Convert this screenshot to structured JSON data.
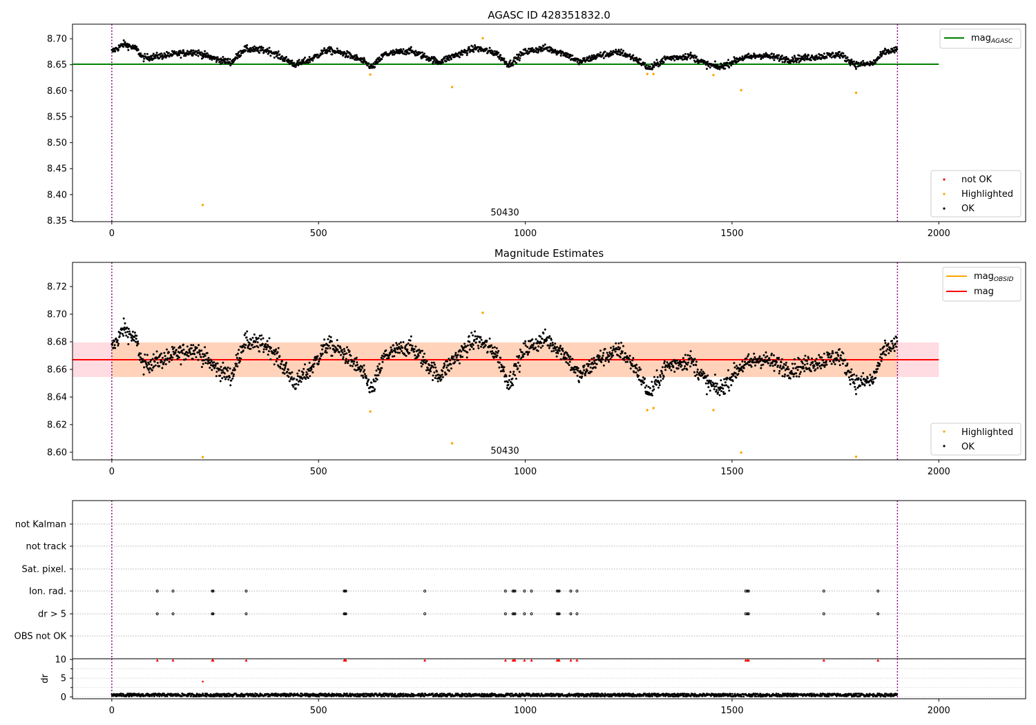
{
  "chart_data": [
    {
      "type": "scatter",
      "title": "AGASC ID 428351832.0",
      "xlim": [
        -95,
        2210
      ],
      "ylim": [
        8.348,
        8.728
      ],
      "x_ticks": [
        0,
        500,
        1000,
        1500,
        2000
      ],
      "y_ticks": [
        "8.35",
        "8.40",
        "8.45",
        "8.50",
        "8.55",
        "8.60",
        "8.65",
        "8.70"
      ],
      "obsid_label": "50430",
      "obsid_label_x": 950,
      "obs_boundaries_x": [
        0,
        1900
      ],
      "hlines": [
        {
          "name": "mag_AGASC",
          "y": 8.651,
          "x_range": [
            -95,
            2000
          ],
          "color": "#008000"
        }
      ],
      "series": [
        {
          "name": "OK",
          "color": "#000000",
          "n_points": 1900,
          "x_range": [
            0,
            1900
          ]
        },
        {
          "name": "Highlighted",
          "color": "#ffa500",
          "points": [
            [
              220,
              8.38
            ],
            [
              625,
              8.631
            ],
            [
              823,
              8.607
            ],
            [
              897,
              8.701
            ],
            [
              1295,
              8.632
            ],
            [
              1310,
              8.632
            ],
            [
              1455,
              8.63
            ],
            [
              1522,
              8.601
            ],
            [
              1800,
              8.596
            ]
          ]
        },
        {
          "name": "not OK",
          "color": "#ff0000",
          "points": []
        }
      ],
      "legend_upper": {
        "position": "top-right",
        "entries": [
          {
            "main": "mag",
            "sub": "AGASC",
            "color": "#008000"
          }
        ]
      },
      "legend_lower": {
        "position": "bottom-right",
        "entries": [
          {
            "label": "not OK",
            "color": "#ff0000"
          },
          {
            "label": "Highlighted",
            "color": "#ffa500"
          },
          {
            "label": "OK",
            "color": "#000000"
          }
        ]
      }
    },
    {
      "type": "scatter",
      "title": "Magnitude Estimates",
      "xlim": [
        -95,
        2210
      ],
      "ylim": [
        8.5945,
        8.7375
      ],
      "x_ticks": [
        0,
        500,
        1000,
        1500,
        2000
      ],
      "y_ticks": [
        "8.60",
        "8.62",
        "8.64",
        "8.66",
        "8.68",
        "8.70",
        "8.72"
      ],
      "obsid_label": "50430",
      "obsid_label_x": 950,
      "obs_boundaries_x": [
        0,
        1900
      ],
      "mag": 8.667,
      "mag_band": [
        8.6545,
        8.6795
      ],
      "mag_x_range": [
        -95,
        2000
      ],
      "mag_obsid": 8.667,
      "mag_obsid_band": [
        8.6545,
        8.6795
      ],
      "mag_obsid_x_range": [
        0,
        1900
      ],
      "series": [
        {
          "name": "OK",
          "color": "#000000",
          "n_points": 1900,
          "x_range": [
            0,
            1900
          ]
        },
        {
          "name": "Highlighted",
          "color": "#ffa500",
          "points": [
            [
              220,
              8.5965
            ],
            [
              625,
              8.6295
            ],
            [
              823,
              8.6065
            ],
            [
              897,
              8.701
            ],
            [
              1295,
              8.6305
            ],
            [
              1310,
              8.632
            ],
            [
              1455,
              8.6305
            ],
            [
              1522,
              8.5998
            ],
            [
              1800,
              8.5968
            ]
          ]
        }
      ],
      "legend_upper": {
        "position": "top-right",
        "entries": [
          {
            "main": "mag",
            "sub": "OBSID",
            "color": "#ffa500"
          },
          {
            "main": "mag",
            "sub": "",
            "color": "#ff0000"
          }
        ]
      },
      "legend_lower": {
        "position": "bottom-right",
        "entries": [
          {
            "label": "Highlighted",
            "color": "#ffa500"
          },
          {
            "label": "OK",
            "color": "#000000"
          }
        ]
      }
    },
    {
      "type": "scatter",
      "title": "",
      "xlim": [
        -95,
        2210
      ],
      "categories": [
        "OBS not OK",
        "dr > 5",
        "Ion. rad.",
        "Sat. pixel.",
        "not track",
        "not Kalman"
      ],
      "obs_boundaries_x": [
        0,
        1900
      ],
      "flag_x": [
        110,
        148,
        243,
        245,
        325,
        562,
        564,
        566,
        757,
        952,
        970,
        973,
        975,
        998,
        1015,
        1077,
        1080,
        1082,
        1110,
        1125,
        1533,
        1537,
        1540,
        1722,
        1853
      ],
      "flag_rows": [
        "dr > 5",
        "Ion. rad."
      ]
    },
    {
      "type": "scatter",
      "ylabel": "dr",
      "xlim": [
        -95,
        2210
      ],
      "ylim": [
        -0.5,
        10.2
      ],
      "x_ticks": [
        0,
        500,
        1000,
        1500,
        2000
      ],
      "y_ticks": [
        "0",
        "5",
        "10"
      ],
      "obs_boundaries_x": [
        0,
        1900
      ],
      "series": [
        {
          "name": "dr",
          "color": "#000000",
          "n_points": 1900,
          "x_range": [
            0,
            1900
          ],
          "typical_range": [
            0.1,
            0.9
          ]
        },
        {
          "name": "clipped (dr > 10)",
          "color": "#ff0000",
          "marker": "triangle-up",
          "y": 9.8,
          "x": [
            110,
            148,
            243,
            245,
            325,
            562,
            564,
            566,
            757,
            952,
            970,
            973,
            975,
            998,
            1015,
            1077,
            1080,
            1082,
            1110,
            1125,
            1533,
            1537,
            1540,
            1722,
            1853
          ]
        },
        {
          "name": "outlier",
          "color": "#ff0000",
          "points": [
            [
              220,
              4.1
            ]
          ]
        }
      ]
    }
  ]
}
